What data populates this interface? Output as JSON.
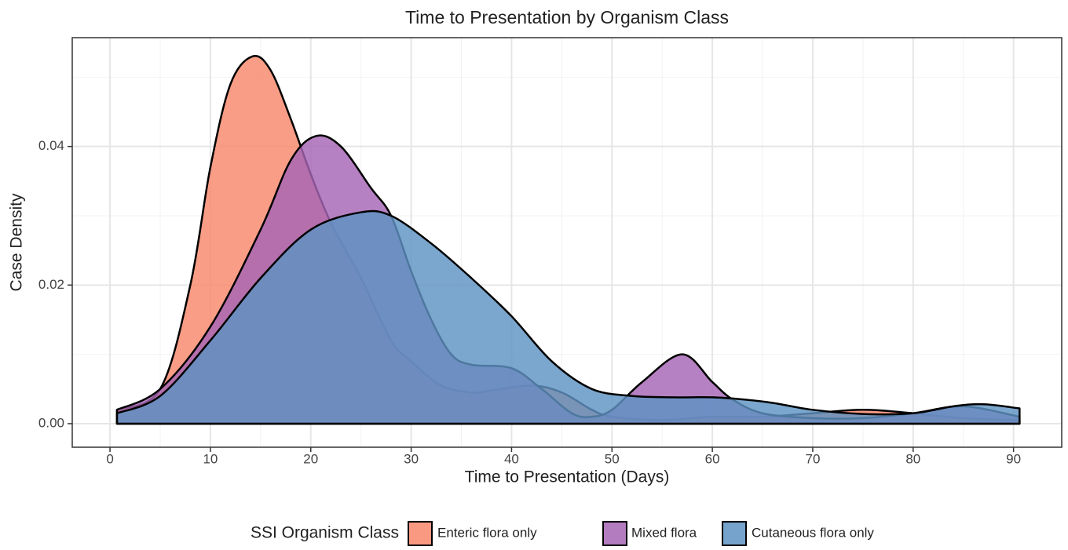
{
  "chart_data": {
    "type": "density",
    "title": "Time to Presentation by Organism Class",
    "x_label": "Time to Presentation (Days)",
    "y_label": "Case Density",
    "legend_title": "SSI Organism Class",
    "legend_position": "bottom",
    "grid": true,
    "xlim": [
      -3.76,
      94.8
    ],
    "ylim": [
      -0.0034,
      0.0557
    ],
    "xticks": [
      0,
      10,
      20,
      30,
      40,
      50,
      60,
      70,
      80,
      90
    ],
    "yticks": [
      {
        "value": 0,
        "label": "0.00"
      },
      {
        "value": 0.02,
        "label": "0.02"
      },
      {
        "value": 0.04,
        "label": "0.04"
      }
    ],
    "x_minor_grid": [
      5,
      15,
      25,
      35,
      45,
      55,
      65,
      75,
      85
    ],
    "y_minor_grid": [
      0.01,
      0.03,
      0.05
    ],
    "series": [
      {
        "name": "Enteric flora only",
        "color": "#f8876b",
        "x": [
          0.7,
          5,
          8,
          10,
          12,
          14.2,
          16,
          18,
          20,
          22,
          25,
          28,
          30,
          33,
          36,
          38,
          42,
          45,
          48,
          50,
          55,
          60,
          65,
          70,
          75,
          80,
          85,
          90.6
        ],
        "values": [
          0.002,
          0.005,
          0.02,
          0.037,
          0.049,
          0.053,
          0.051,
          0.044,
          0.036,
          0.029,
          0.021,
          0.012,
          0.009,
          0.0055,
          0.0045,
          0.0048,
          0.0055,
          0.0045,
          0.002,
          0.001,
          0.0005,
          0.001,
          0.001,
          0.0015,
          0.002,
          0.0015,
          0.0008,
          0.0005
        ]
      },
      {
        "name": "Mixed flora",
        "color": "#a665b4",
        "x": [
          0.7,
          5,
          10,
          15,
          18,
          20.5,
          23,
          26,
          28,
          30,
          32,
          34,
          36,
          40,
          43,
          46,
          48,
          50,
          53,
          57,
          60,
          62,
          65,
          70,
          75,
          80,
          85,
          90.6
        ],
        "values": [
          0.002,
          0.005,
          0.014,
          0.028,
          0.038,
          0.0415,
          0.04,
          0.034,
          0.03,
          0.022,
          0.015,
          0.01,
          0.0085,
          0.008,
          0.005,
          0.0015,
          0.001,
          0.002,
          0.006,
          0.01,
          0.006,
          0.0035,
          0.0015,
          0.0008,
          0.0008,
          0.0015,
          0.0025,
          0.001
        ]
      },
      {
        "name": "Cutaneous flora only",
        "color": "#5e93c2",
        "x": [
          0.7,
          5,
          10,
          15,
          20,
          25,
          28,
          32,
          36,
          40,
          44,
          48,
          52,
          56,
          60,
          63,
          66,
          70,
          75,
          80,
          84,
          87,
          90.6
        ],
        "values": [
          0.0015,
          0.004,
          0.012,
          0.021,
          0.028,
          0.0305,
          0.03,
          0.026,
          0.021,
          0.0155,
          0.009,
          0.005,
          0.004,
          0.0038,
          0.0038,
          0.0035,
          0.003,
          0.002,
          0.0014,
          0.0015,
          0.0025,
          0.0028,
          0.0022
        ]
      }
    ]
  }
}
